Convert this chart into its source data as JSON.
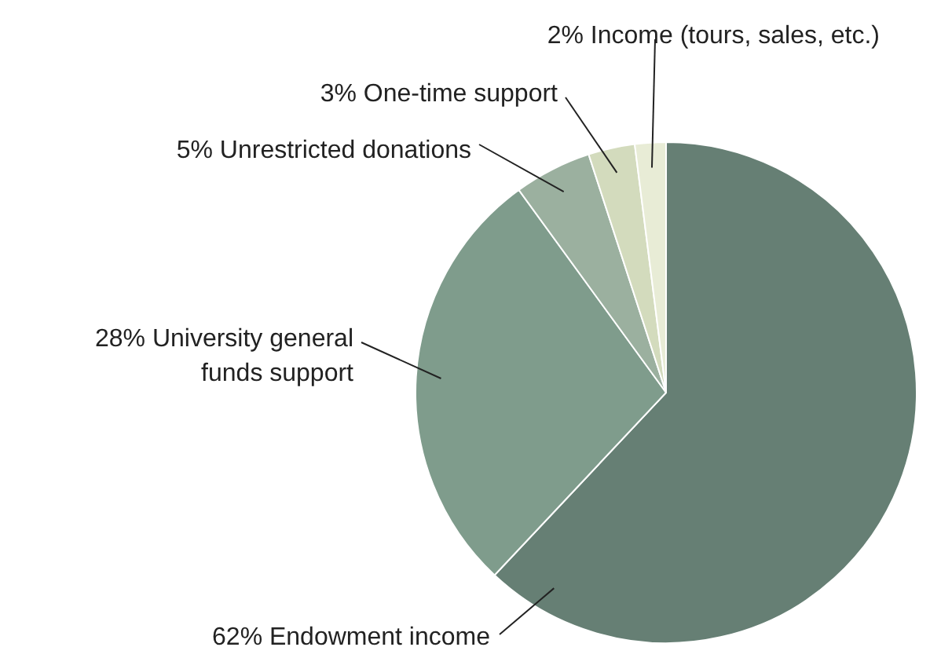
{
  "chart_data": {
    "type": "pie",
    "categories": [
      "Endowment income",
      "University general funds support",
      "Unrestricted donations",
      "One-time support",
      "Income (tours, sales, etc.)"
    ],
    "values": [
      62,
      28,
      5,
      3,
      2
    ],
    "value_labels": [
      "62%",
      "28%",
      "5%",
      "3%",
      "2%"
    ],
    "colors": [
      "#667f74",
      "#7f9c8c",
      "#9bb09f",
      "#d3dbbd",
      "#e8ecd6"
    ]
  }
}
